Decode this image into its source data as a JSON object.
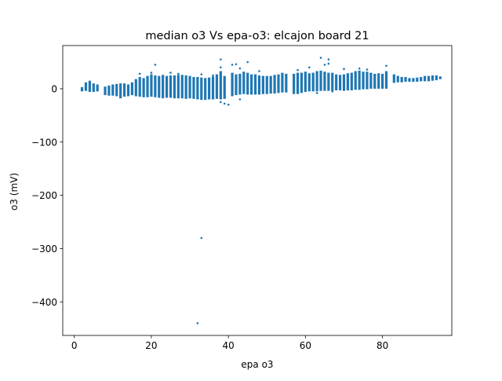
{
  "chart_data": {
    "type": "scatter",
    "title": "median o3 Vs epa-o3: elcajon board 21",
    "xlabel": "epa o3",
    "ylabel": "o3 (mV)",
    "xlim": [
      -3,
      98
    ],
    "ylim": [
      -463,
      81
    ],
    "xticks": [
      0,
      20,
      40,
      60,
      80
    ],
    "yticks": [
      0,
      -100,
      -200,
      -300,
      -400
    ],
    "ytick_labels": [
      "0",
      "−100",
      "−200",
      "−300",
      "−400"
    ],
    "grid": false,
    "marker_color": "#1f77b4",
    "series": [
      {
        "band_columns": [
          [
            2,
            -5,
            3
          ],
          [
            3,
            -4,
            12
          ],
          [
            4,
            -6,
            15
          ],
          [
            5,
            -6,
            10
          ],
          [
            6,
            -5,
            8
          ],
          [
            8,
            -12,
            4
          ],
          [
            9,
            -13,
            6
          ],
          [
            10,
            -13,
            8
          ],
          [
            11,
            -14,
            9
          ],
          [
            12,
            -18,
            10
          ],
          [
            13,
            -15,
            10
          ],
          [
            14,
            -14,
            8
          ],
          [
            15,
            -12,
            12
          ],
          [
            16,
            -14,
            18
          ],
          [
            17,
            -15,
            22
          ],
          [
            18,
            -16,
            20
          ],
          [
            19,
            -16,
            24
          ],
          [
            20,
            -15,
            27
          ],
          [
            21,
            -16,
            25
          ],
          [
            22,
            -17,
            24
          ],
          [
            23,
            -18,
            26
          ],
          [
            24,
            -17,
            24
          ],
          [
            25,
            -17,
            25
          ],
          [
            26,
            -18,
            25
          ],
          [
            27,
            -18,
            26
          ],
          [
            28,
            -18,
            26
          ],
          [
            29,
            -19,
            25
          ],
          [
            30,
            -18,
            24
          ],
          [
            31,
            -19,
            22
          ],
          [
            32,
            -20,
            22
          ],
          [
            33,
            -21,
            21
          ],
          [
            34,
            -21,
            20
          ],
          [
            35,
            -20,
            21
          ],
          [
            36,
            -20,
            23
          ],
          [
            37,
            -19,
            27
          ],
          [
            38,
            -20,
            33
          ],
          [
            39,
            -19,
            24
          ],
          [
            41,
            -14,
            30
          ],
          [
            42,
            -12,
            27
          ],
          [
            43,
            -11,
            28
          ],
          [
            44,
            -10,
            32
          ],
          [
            45,
            -11,
            30
          ],
          [
            46,
            -11,
            27
          ],
          [
            47,
            -11,
            27
          ],
          [
            48,
            -11,
            25
          ],
          [
            49,
            -10,
            24
          ],
          [
            50,
            -10,
            24
          ],
          [
            51,
            -9,
            24
          ],
          [
            52,
            -9,
            26
          ],
          [
            53,
            -8,
            27
          ],
          [
            54,
            -7,
            30
          ],
          [
            55,
            -7,
            28
          ],
          [
            57,
            -10,
            28
          ],
          [
            58,
            -10,
            30
          ],
          [
            59,
            -8,
            30
          ],
          [
            60,
            -6,
            32
          ],
          [
            61,
            -5,
            29
          ],
          [
            62,
            -5,
            30
          ],
          [
            63,
            -5,
            33
          ],
          [
            64,
            -4,
            34
          ],
          [
            65,
            -4,
            32
          ],
          [
            66,
            -4,
            30
          ],
          [
            67,
            -4,
            30
          ],
          [
            68,
            -3,
            27
          ],
          [
            69,
            -3,
            26
          ],
          [
            70,
            -4,
            27
          ],
          [
            71,
            -3,
            29
          ],
          [
            72,
            -3,
            30
          ],
          [
            73,
            -2,
            33
          ],
          [
            74,
            -2,
            34
          ],
          [
            75,
            -1,
            32
          ],
          [
            76,
            -1,
            32
          ],
          [
            77,
            0,
            30
          ],
          [
            78,
            0,
            28
          ],
          [
            79,
            0,
            29
          ],
          [
            80,
            0,
            28
          ],
          [
            81,
            0,
            33
          ],
          [
            83,
            11,
            27
          ],
          [
            84,
            12,
            24
          ],
          [
            85,
            12,
            22
          ],
          [
            86,
            13,
            22
          ],
          [
            87,
            13,
            20
          ],
          [
            88,
            13,
            20
          ],
          [
            89,
            13,
            21
          ],
          [
            90,
            14,
            22
          ],
          [
            91,
            14,
            24
          ],
          [
            92,
            14,
            24
          ],
          [
            93,
            15,
            25
          ],
          [
            94,
            16,
            25
          ],
          [
            95,
            18,
            23
          ]
        ],
        "points": [
          [
            16,
            -5
          ],
          [
            21,
            45
          ],
          [
            30,
            -6
          ],
          [
            33,
            -280
          ],
          [
            32,
            -440
          ],
          [
            38,
            55
          ],
          [
            38,
            40
          ],
          [
            39,
            -28
          ],
          [
            40,
            -30
          ],
          [
            38,
            -25
          ],
          [
            41,
            45
          ],
          [
            42,
            46
          ],
          [
            45,
            50
          ],
          [
            43,
            38
          ],
          [
            64,
            58
          ],
          [
            66,
            55
          ],
          [
            65,
            45
          ],
          [
            66,
            47
          ],
          [
            81,
            43
          ],
          [
            76,
            36
          ],
          [
            61,
            40
          ],
          [
            58,
            35
          ],
          [
            20,
            30
          ],
          [
            43,
            -20
          ],
          [
            63,
            -8
          ],
          [
            67,
            -5
          ],
          [
            52,
            -2
          ],
          [
            17,
            28
          ],
          [
            25,
            30
          ],
          [
            36,
            25
          ],
          [
            48,
            33
          ],
          [
            33,
            27
          ],
          [
            27,
            28
          ],
          [
            70,
            37
          ],
          [
            74,
            38
          ]
        ]
      }
    ]
  }
}
